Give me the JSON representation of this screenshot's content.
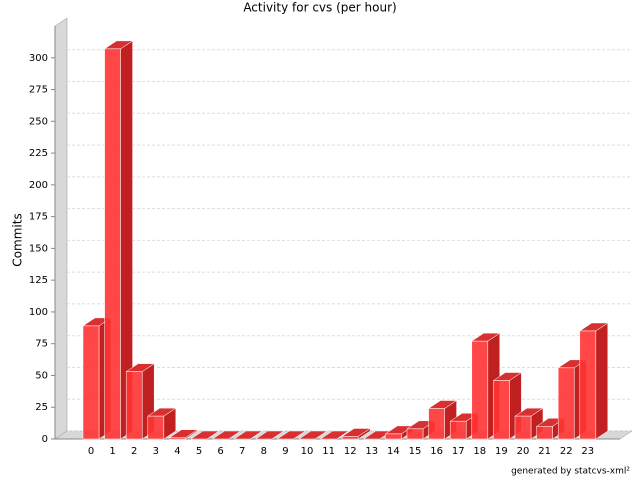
{
  "chart_data": {
    "type": "bar3d",
    "title": "Activity for cvs (per hour)",
    "y_label": "Commits",
    "footer": "generated by statcvs-xml²",
    "categories": [
      "0",
      "1",
      "2",
      "3",
      "4",
      "5",
      "6",
      "7",
      "8",
      "9",
      "10",
      "11",
      "12",
      "13",
      "14",
      "15",
      "16",
      "17",
      "18",
      "19",
      "20",
      "21",
      "22",
      "23"
    ],
    "values": [
      89,
      307,
      53,
      18,
      1,
      0,
      0,
      0,
      0,
      0,
      0,
      0,
      2,
      0,
      4,
      8,
      24,
      14,
      77,
      46,
      18,
      10,
      56,
      85
    ],
    "color": "#ff3333",
    "ylim": [
      0,
      325
    ],
    "yticks": [
      0,
      25,
      50,
      75,
      100,
      125,
      150,
      175,
      200,
      225,
      250,
      275,
      300
    ],
    "grid": true
  }
}
